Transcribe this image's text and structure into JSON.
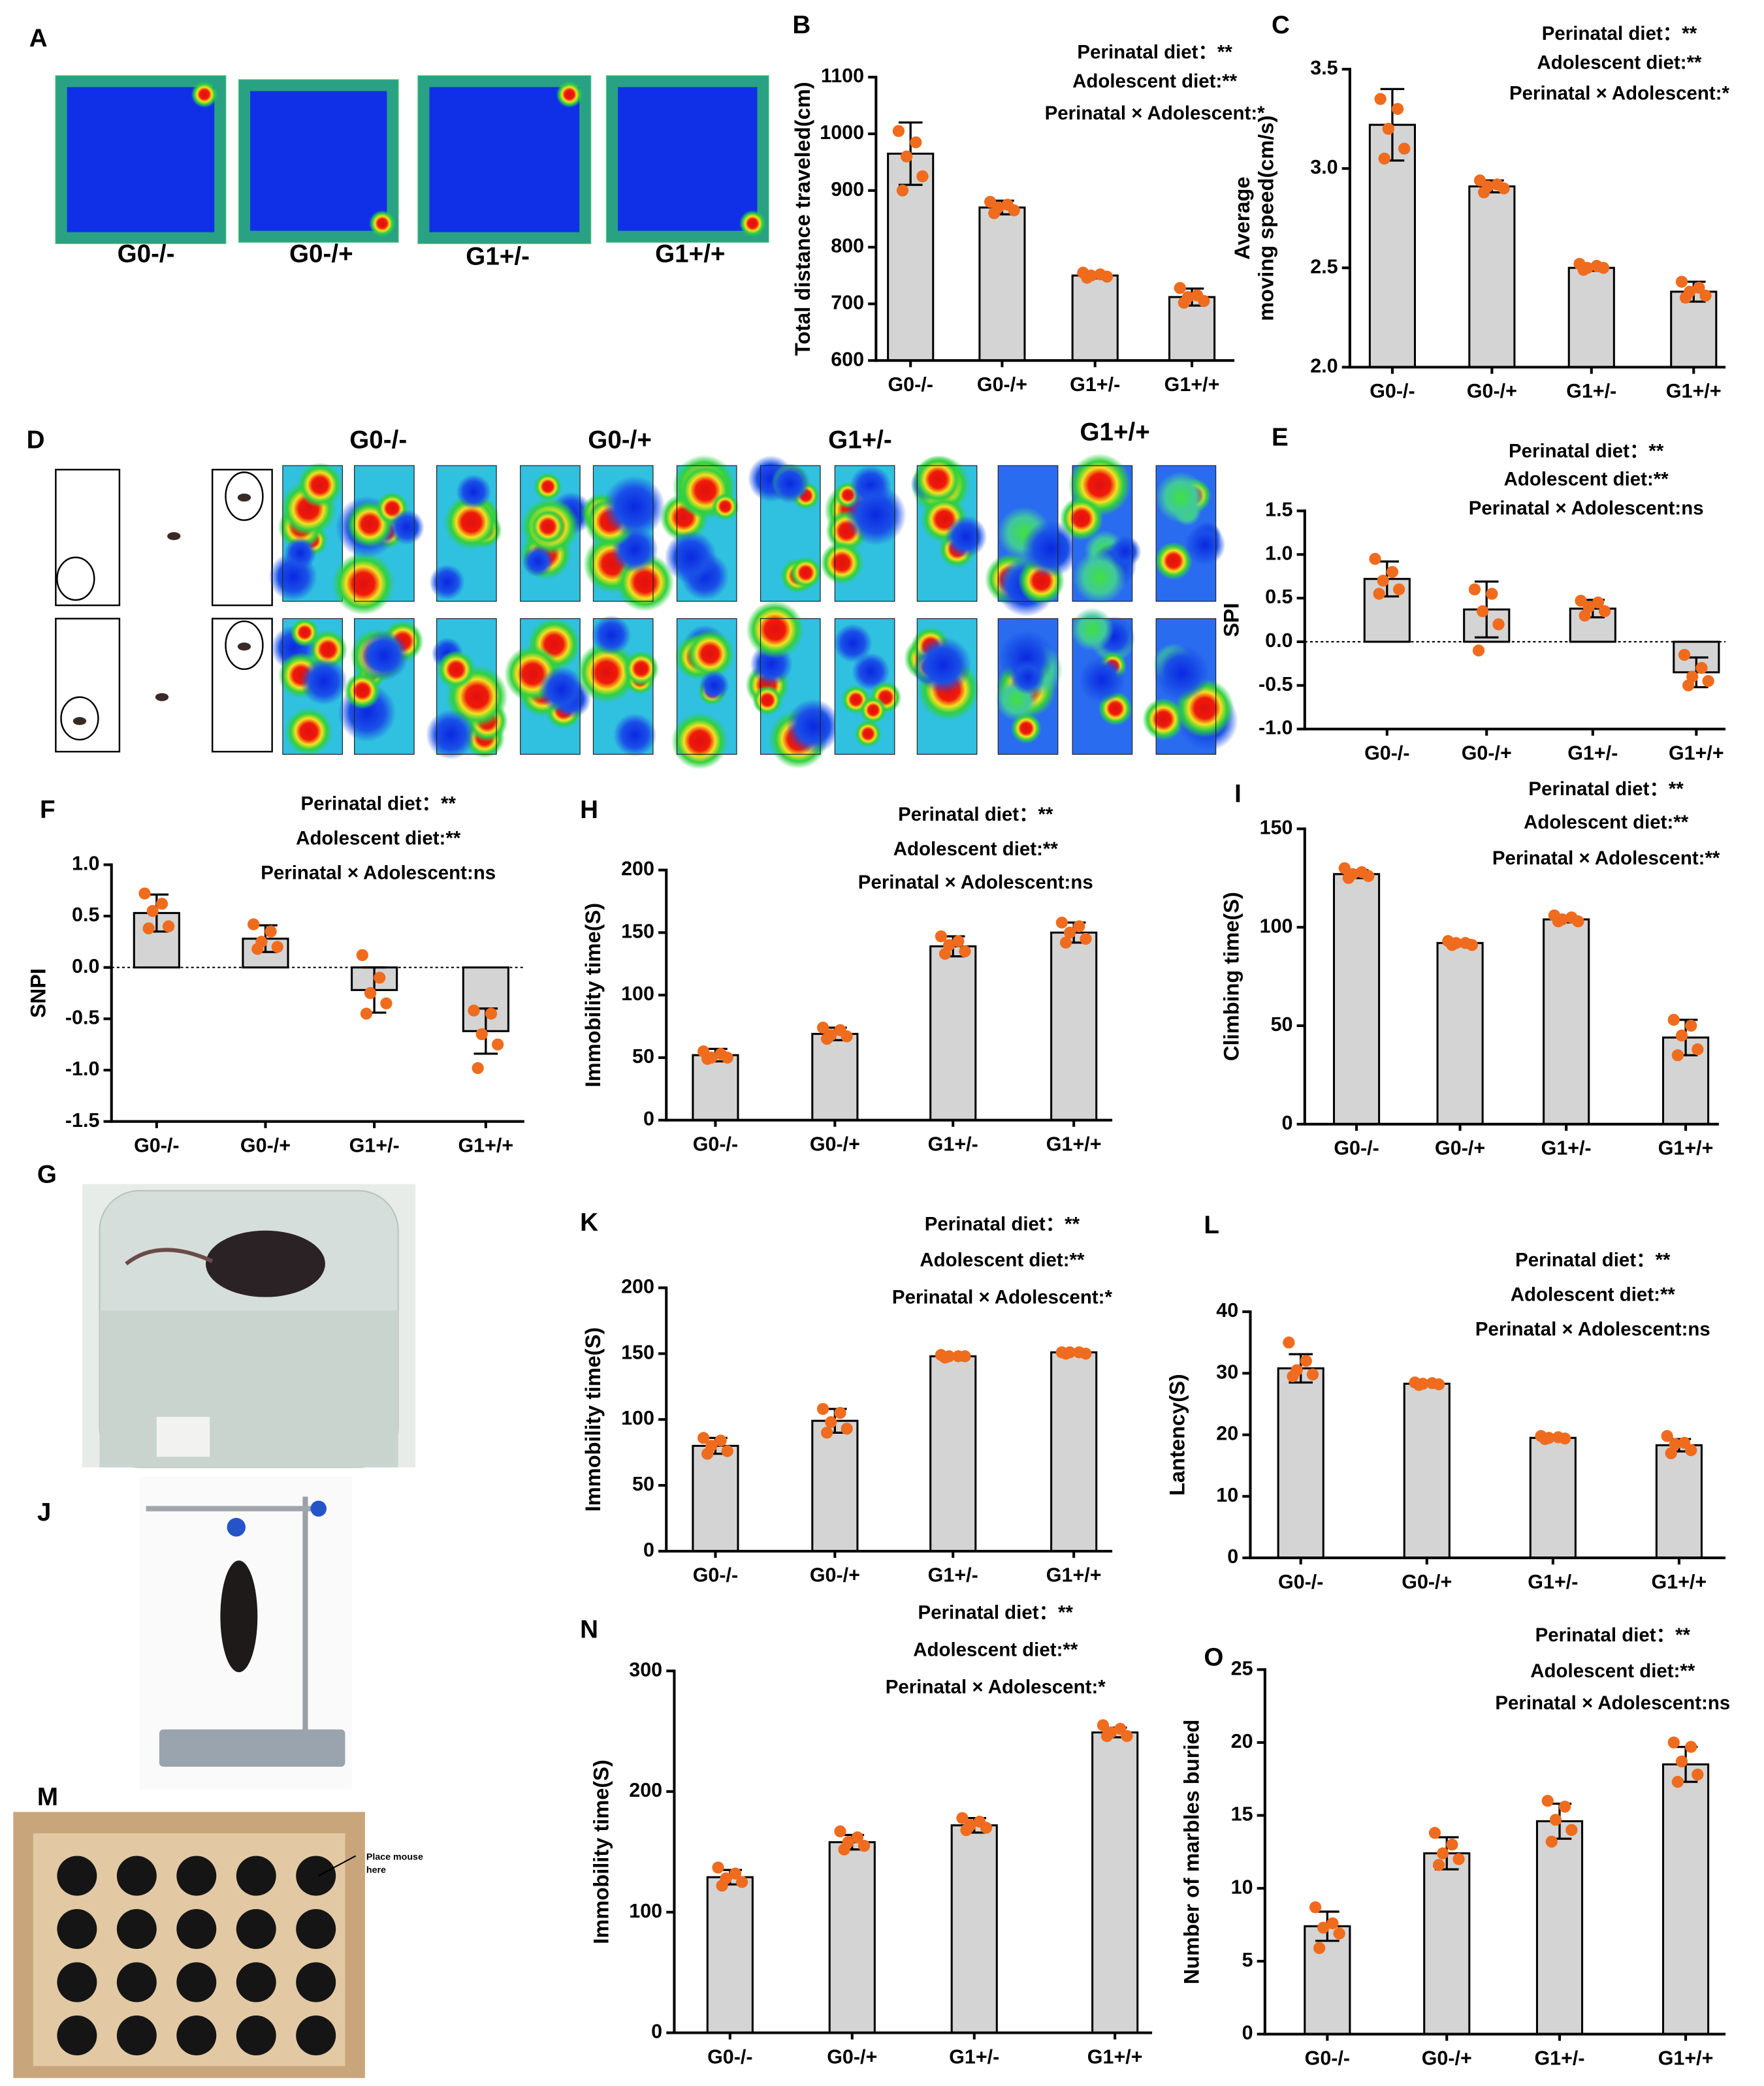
{
  "figure": {
    "A": {
      "panel": "A",
      "labels": [
        "G0-/-",
        "G0-/+",
        "G1+/-",
        "G1+/+"
      ]
    },
    "D": {
      "panel": "D",
      "labels": [
        "G0-/-",
        "G0-/+",
        "G1+/-",
        "G1+/+"
      ]
    },
    "G": {
      "panel": "G"
    },
    "J": {
      "panel": "J"
    },
    "M": {
      "panel": "M",
      "note": [
        "Place mouse",
        "here"
      ]
    }
  },
  "chart_data": [
    {
      "type": "bar",
      "panel": "B",
      "ylabel": [
        "Total distance traveled(cm)"
      ],
      "annotations": [
        "Perinatal diet：**",
        "Adolescent diet:**",
        "Perinatal × Adolescent:*"
      ],
      "categories": [
        "G0-/-",
        "G0-/+",
        "G1+/-",
        "G1+/+"
      ],
      "values": [
        965,
        870,
        750,
        712
      ],
      "errors": [
        55,
        12,
        5,
        15
      ],
      "points": [
        [
          1005,
          985,
          960,
          925,
          900
        ],
        [
          880,
          875,
          870,
          865,
          860
        ],
        [
          755,
          752,
          750,
          748,
          746
        ],
        [
          728,
          715,
          712,
          705,
          702
        ]
      ],
      "color": "#d4d4d4",
      "point_color": "#ef6c1e",
      "ylim": [
        600,
        1100
      ],
      "yticks": [
        600,
        700,
        800,
        900,
        1000,
        1100
      ],
      "zero_line": false
    },
    {
      "type": "bar",
      "panel": "C",
      "ylabel": [
        "Average",
        "moving speed(cm/s)"
      ],
      "annotations": [
        "Perinatal diet：**",
        "Adolescent diet:**",
        "Perinatal × Adolescent:*"
      ],
      "categories": [
        "G0-/-",
        "G0-/+",
        "G1+/-",
        "G1+/+"
      ],
      "values": [
        3.22,
        2.91,
        2.5,
        2.38
      ],
      "errors": [
        0.18,
        0.03,
        0.015,
        0.05
      ],
      "points": [
        [
          3.35,
          3.3,
          3.2,
          3.1,
          3.05
        ],
        [
          2.94,
          2.92,
          2.91,
          2.9,
          2.88
        ],
        [
          2.52,
          2.51,
          2.5,
          2.5,
          2.49
        ],
        [
          2.43,
          2.4,
          2.38,
          2.36,
          2.35
        ]
      ],
      "color": "#d4d4d4",
      "point_color": "#ef6c1e",
      "ylim": [
        2.0,
        3.5
      ],
      "yticks": [
        {
          "value": 2,
          "label": "2.0"
        },
        2.5,
        {
          "value": 3,
          "label": "3.0"
        },
        3.5
      ],
      "zero_line": false
    },
    {
      "type": "bar",
      "panel": "E",
      "ylabel": [
        "SPI"
      ],
      "annotations": [
        "Perinatal diet：**",
        "Adolescent diet:**",
        "Perinatal × Adolescent:ns"
      ],
      "categories": [
        "G0-/-",
        "G0-/+",
        "G1+/-",
        "G1+/+"
      ],
      "values": [
        0.72,
        0.37,
        0.38,
        -0.35
      ],
      "errors": [
        0.2,
        0.32,
        0.1,
        0.17
      ],
      "points": [
        [
          0.95,
          0.8,
          0.7,
          0.6,
          0.55
        ],
        [
          0.6,
          0.55,
          0.35,
          0.2,
          -0.1
        ],
        [
          0.47,
          0.45,
          0.4,
          0.35,
          0.3
        ],
        [
          -0.15,
          -0.3,
          -0.4,
          -0.45,
          -0.5
        ]
      ],
      "color": "#d4d4d4",
      "point_color": "#ef6c1e",
      "ylim": [
        -1.0,
        1.5
      ],
      "yticks": [
        {
          "value": -1,
          "label": "-1.0"
        },
        -0.5,
        {
          "value": 0,
          "label": "0.0"
        },
        0.5,
        {
          "value": 1,
          "label": "1.0"
        },
        1.5
      ],
      "zero_line": true
    },
    {
      "type": "bar",
      "panel": "F",
      "ylabel": [
        "SNPI"
      ],
      "annotations": [
        "Perinatal diet：**",
        "Adolescent diet:**",
        "Perinatal × Adolescent:ns"
      ],
      "categories": [
        "G0-/-",
        "G0-/+",
        "G1+/-",
        "G1+/+"
      ],
      "values": [
        0.53,
        0.28,
        -0.22,
        -0.62
      ],
      "errors": [
        0.18,
        0.13,
        0.22,
        0.22
      ],
      "points": [
        [
          0.72,
          0.62,
          0.55,
          0.4,
          0.38
        ],
        [
          0.42,
          0.35,
          0.25,
          0.2,
          0.18
        ],
        [
          0.12,
          -0.1,
          -0.25,
          -0.35,
          -0.45
        ],
        [
          -0.42,
          -0.45,
          -0.65,
          -0.75,
          -0.98
        ]
      ],
      "color": "#d4d4d4",
      "point_color": "#ef6c1e",
      "ylim": [
        -1.5,
        1.0
      ],
      "yticks": [
        -1.5,
        {
          "value": -1,
          "label": "-1.0"
        },
        -0.5,
        {
          "value": 0,
          "label": "0.0"
        },
        0.5,
        {
          "value": 1,
          "label": "1.0"
        }
      ],
      "zero_line": true
    },
    {
      "type": "bar",
      "panel": "H",
      "ylabel": [
        "Immobility time(S)"
      ],
      "annotations": [
        "Perinatal diet：**",
        "Adolescent diet:**",
        "Perinatal × Adolescent:ns"
      ],
      "categories": [
        "G0-/-",
        "G0-/+",
        "G1+/-",
        "G1+/+"
      ],
      "values": [
        52,
        69,
        139,
        150
      ],
      "errors": [
        5,
        5,
        8,
        8
      ],
      "points": [
        [
          55,
          53,
          50,
          50,
          49
        ],
        [
          74,
          72,
          68,
          67,
          65
        ],
        [
          147,
          143,
          140,
          135,
          133
        ],
        [
          158,
          155,
          150,
          145,
          142
        ]
      ],
      "color": "#d4d4d4",
      "point_color": "#ef6c1e",
      "ylim": [
        0,
        200
      ],
      "yticks": [
        0,
        50,
        100,
        150,
        200
      ],
      "zero_line": false
    },
    {
      "type": "bar",
      "panel": "I",
      "ylabel": [
        "Climbing time(S)"
      ],
      "annotations": [
        "Perinatal diet：**",
        "Adolescent diet:**",
        "Perinatal × Adolescent:**"
      ],
      "categories": [
        "G0-/-",
        "G0-/+",
        "G1+/-",
        "G1+/+"
      ],
      "values": [
        127,
        92,
        104,
        44
      ],
      "errors": [
        2,
        1.5,
        1.5,
        9
      ],
      "points": [
        [
          130,
          128,
          127,
          126,
          125
        ],
        [
          93,
          92,
          92,
          91,
          91
        ],
        [
          106,
          105,
          104,
          103,
          103
        ],
        [
          53,
          50,
          45,
          38,
          35
        ]
      ],
      "color": "#d4d4d4",
      "point_color": "#ef6c1e",
      "ylim": [
        0,
        150
      ],
      "yticks": [
        0,
        50,
        100,
        150
      ],
      "zero_line": false
    },
    {
      "type": "bar",
      "panel": "K",
      "ylabel": [
        "Immobility time(S)"
      ],
      "annotations": [
        "Perinatal diet：**",
        "Adolescent diet:**",
        "Perinatal × Adolescent:*"
      ],
      "categories": [
        "G0-/-",
        "G0-/+",
        "G1+/-",
        "G1+/+"
      ],
      "values": [
        80,
        99,
        148,
        151
      ],
      "errors": [
        6,
        9,
        1,
        1
      ],
      "points": [
        [
          86,
          84,
          80,
          76,
          74
        ],
        [
          108,
          105,
          98,
          93,
          90
        ],
        [
          149,
          148,
          148,
          148,
          147
        ],
        [
          151,
          151,
          151,
          150,
          150
        ]
      ],
      "color": "#d4d4d4",
      "point_color": "#ef6c1e",
      "ylim": [
        0,
        200
      ],
      "yticks": [
        0,
        50,
        100,
        150,
        200
      ],
      "zero_line": false
    },
    {
      "type": "bar",
      "panel": "L",
      "ylabel": [
        "Lantency(S)"
      ],
      "annotations": [
        "Perinatal diet：**",
        "Adolescent diet:**",
        "Perinatal × Adolescent:ns"
      ],
      "categories": [
        "G0-/-",
        "G0-/+",
        "G1+/-",
        "G1+/+"
      ],
      "values": [
        30.8,
        28.3,
        19.5,
        18.3
      ],
      "errors": [
        2.3,
        0.3,
        0.3,
        1
      ],
      "points": [
        [
          35,
          32,
          30.5,
          29.8,
          29.5
        ],
        [
          28.5,
          28.4,
          28.3,
          28.2,
          28.1
        ],
        [
          19.8,
          19.6,
          19.5,
          19.4,
          19.3
        ],
        [
          19.8,
          18.7,
          18.5,
          17.5,
          17
        ]
      ],
      "color": "#d4d4d4",
      "point_color": "#ef6c1e",
      "ylim": [
        0,
        40
      ],
      "yticks": [
        0,
        10,
        20,
        30,
        40
      ],
      "zero_line": false
    },
    {
      "type": "bar",
      "panel": "N",
      "ylabel": [
        "Immobility time(S)"
      ],
      "annotations": [
        "Perinatal diet：**",
        "Adolescent diet:**",
        "Perinatal × Adolescent:*"
      ],
      "categories": [
        "G0-/-",
        "G0-/+",
        "G1+/-",
        "G1+/+"
      ],
      "values": [
        129,
        158,
        172,
        249
      ],
      "errors": [
        6,
        6,
        6,
        4
      ],
      "points": [
        [
          137,
          132,
          128,
          125,
          122
        ],
        [
          167,
          162,
          158,
          155,
          152
        ],
        [
          178,
          175,
          172,
          170,
          168
        ],
        [
          255,
          252,
          249,
          246,
          246
        ]
      ],
      "color": "#d4d4d4",
      "point_color": "#ef6c1e",
      "ylim": [
        0,
        300
      ],
      "yticks": [
        0,
        100,
        200,
        300
      ],
      "zero_line": false
    },
    {
      "type": "bar",
      "panel": "O",
      "ylabel": [
        "Number of marbles buried"
      ],
      "annotations": [
        "Perinatal diet：**",
        "Adolescent diet:**",
        "Perinatal × Adolescent:ns"
      ],
      "categories": [
        "G0-/-",
        "G0-/+",
        "G1+/-",
        "G1+/+"
      ],
      "values": [
        7.4,
        12.4,
        14.6,
        18.5
      ],
      "errors": [
        1,
        1.1,
        1.2,
        1.2
      ],
      "points": [
        [
          8.7,
          7.6,
          7.3,
          6.9,
          5.9
        ],
        [
          13.8,
          13,
          12.4,
          12,
          11.6
        ],
        [
          16,
          15.6,
          14.7,
          14,
          13.2
        ],
        [
          20,
          19.7,
          18.7,
          17.8,
          17.3
        ]
      ],
      "color": "#d4d4d4",
      "point_color": "#ef6c1e",
      "ylim": [
        0,
        25
      ],
      "yticks": [
        0,
        5,
        10,
        15,
        20,
        25
      ],
      "zero_line": false
    }
  ]
}
